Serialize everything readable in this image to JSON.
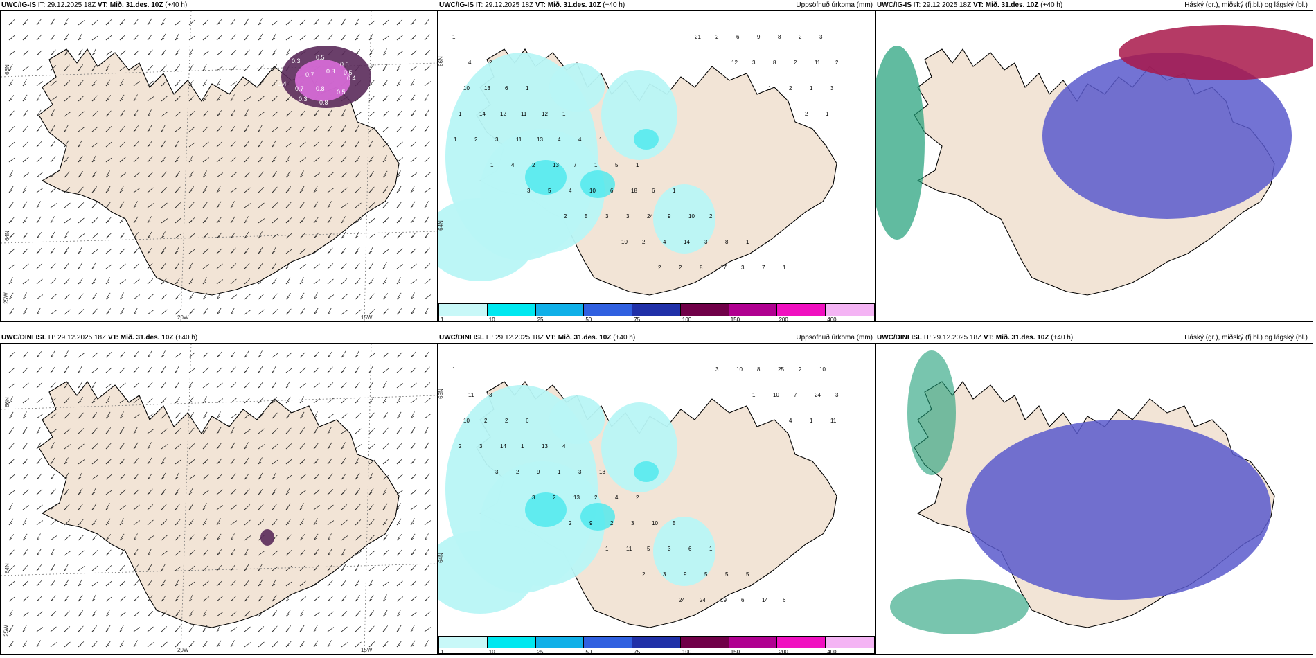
{
  "panels": [
    {
      "model": "UWC/IG-IS",
      "it_label": "IT:",
      "it": "29.12.2025 18Z",
      "vt_label": "VT:",
      "vt": "Mið. 31.des. 10Z",
      "lead": "(+40 h)",
      "subtitle": ""
    },
    {
      "model": "UWC/IG-IS",
      "it_label": "IT:",
      "it": "29.12.2025 18Z",
      "vt_label": "VT:",
      "vt": "Mið. 31.des. 10Z",
      "lead": "(+40 h)",
      "subtitle": "Uppsöfnuð úrkoma (mm)"
    },
    {
      "model": "UWC/IG-IS",
      "it_label": "IT:",
      "it": "29.12.2025 18Z",
      "vt_label": "VT:",
      "vt": "Mið. 31.des. 10Z",
      "lead": "(+40 h)",
      "subtitle": "Háský (gr.), miðský (fj.bl.) og lágský (bl.)"
    },
    {
      "model": "UWC/DINI ISL",
      "it_label": "IT:",
      "it": "29.12.2025 18Z",
      "vt_label": "VT:",
      "vt": "Mið. 31.des. 10Z",
      "lead": "(+40 h)",
      "subtitle": ""
    },
    {
      "model": "UWC/DINI ISL",
      "it_label": "IT:",
      "it": "29.12.2025 18Z",
      "vt_label": "VT:",
      "vt": "Mið. 31.des. 10Z",
      "lead": "(+40 h)",
      "subtitle": "Uppsöfnuð úrkoma (mm)"
    },
    {
      "model": "UWC/DINI ISL",
      "it_label": "IT:",
      "it": "29.12.2025 18Z",
      "vt_label": "VT:",
      "vt": "Mið. 31.des. 10Z",
      "lead": "(+40 h)",
      "subtitle": "Háský (gr.), miðský (fj.bl.) og lágský (bl.)"
    }
  ],
  "axis_labels": {
    "lat66": "66N",
    "lat64": "64N",
    "lon25": "25W",
    "lon20": "20W",
    "lon15": "15W"
  },
  "colorbar": {
    "segments": [
      {
        "label": "1",
        "color": "#c8f8f8"
      },
      {
        "label": "10",
        "color": "#00e8f0"
      },
      {
        "label": "25",
        "color": "#10b0e8"
      },
      {
        "label": "50",
        "color": "#3060e0"
      },
      {
        "label": "75",
        "color": "#2030a8"
      },
      {
        "label": "100",
        "color": "#700048"
      },
      {
        "label": "150",
        "color": "#b00090"
      },
      {
        "label": "200",
        "color": "#f010c0"
      },
      {
        "label": "400",
        "color": "#f4b4f4"
      }
    ]
  },
  "precip_labels_top": [
    "1",
    "2",
    "1",
    "1",
    "1",
    "1",
    "1",
    "2",
    "1",
    "1",
    "3",
    "4",
    "6",
    "12",
    "4",
    "5",
    "6",
    "10",
    "8",
    "7",
    "2",
    "2",
    "13",
    "11",
    "4",
    "1",
    "18",
    "9",
    "3",
    "3",
    "8",
    "11",
    "10",
    "12",
    "13",
    "7",
    "6",
    "24",
    "14",
    "17",
    "9",
    "2",
    "3",
    "14",
    "11",
    "13",
    "10",
    "3",
    "4",
    "8",
    "6",
    "8",
    "1",
    "1",
    "3",
    "2",
    "4",
    "3",
    "2",
    "2",
    "2",
    "3",
    "2",
    "1",
    "2",
    "4",
    "5",
    "5",
    "10",
    "2",
    "21",
    "12",
    "1",
    "2",
    "1",
    "1",
    "3",
    "2"
  ],
  "precip_labels_bottom": [
    "1",
    "3",
    "6",
    "4",
    "13",
    "2",
    "5",
    "1",
    "5",
    "6",
    "10",
    "11",
    "2",
    "13",
    "3",
    "4",
    "10",
    "6",
    "5",
    "14",
    "2",
    "3",
    "2",
    "1",
    "1",
    "2",
    "3",
    "3",
    "5",
    "6",
    "25",
    "24",
    "10",
    "14",
    "9",
    "13",
    "2",
    "5",
    "9",
    "19",
    "8",
    "7",
    "11",
    "3",
    "2",
    "2",
    "9",
    "11",
    "3",
    "24",
    "10",
    "10",
    "1",
    "2",
    "3",
    "3",
    "2",
    "1",
    "2",
    "24",
    "3",
    "1",
    "4"
  ],
  "ice_labels": [
    "0.3",
    "0.5",
    "0.6",
    "0.7",
    "0.3",
    "0.4",
    "0.7",
    "0.8",
    "0.5",
    "0.3",
    "0.8",
    "0.4",
    "0.5"
  ],
  "colors": {
    "land": "#f2e4d6",
    "coast": "#000000",
    "precip_light": "#b8f6f6",
    "precip_mid": "#4ae8ee",
    "ice_dark": "#5a2a5a",
    "ice_pink": "#e070e0",
    "cloud_low": "#5a5acc",
    "cloud_mid": "#1e9e78",
    "cloud_high": "#a8184a"
  }
}
